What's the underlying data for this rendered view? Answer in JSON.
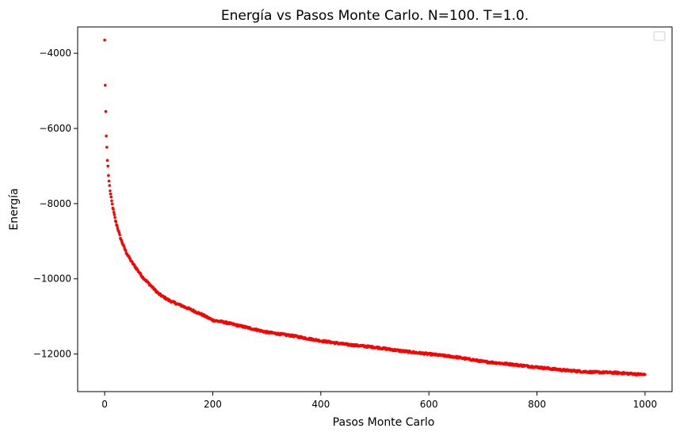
{
  "chart_data": {
    "type": "scatter",
    "title": "Energía vs Pasos Monte Carlo. N=100. T=1.0.",
    "xlabel": "Pasos Monte Carlo",
    "ylabel": "Energía",
    "xlim": [
      -50,
      1050
    ],
    "ylim": [
      -13000,
      -3300
    ],
    "xticks": [
      0,
      200,
      400,
      600,
      800,
      1000
    ],
    "yticks": [
      -12000,
      -10000,
      -8000,
      -6000,
      -4000
    ],
    "grid": false,
    "legend": "top-right, empty",
    "marker_color": "#ff0000",
    "x_range": [
      0,
      1000
    ],
    "x_step": 1,
    "anchor_points": [
      [
        0,
        -3650
      ],
      [
        1,
        -4850
      ],
      [
        2,
        -5550
      ],
      [
        3,
        -6200
      ],
      [
        4,
        -6500
      ],
      [
        5,
        -6850
      ],
      [
        6,
        -7000
      ],
      [
        7,
        -7250
      ],
      [
        8,
        -7400
      ],
      [
        10,
        -7650
      ],
      [
        12,
        -7850
      ],
      [
        15,
        -8100
      ],
      [
        20,
        -8450
      ],
      [
        25,
        -8700
      ],
      [
        30,
        -8950
      ],
      [
        40,
        -9300
      ],
      [
        50,
        -9550
      ],
      [
        60,
        -9750
      ],
      [
        70,
        -9950
      ],
      [
        80,
        -10100
      ],
      [
        90,
        -10250
      ],
      [
        100,
        -10400
      ],
      [
        120,
        -10580
      ],
      [
        140,
        -10700
      ],
      [
        160,
        -10820
      ],
      [
        180,
        -10950
      ],
      [
        200,
        -11100
      ],
      [
        220,
        -11150
      ],
      [
        250,
        -11250
      ],
      [
        280,
        -11350
      ],
      [
        300,
        -11420
      ],
      [
        350,
        -11520
      ],
      [
        400,
        -11650
      ],
      [
        450,
        -11750
      ],
      [
        500,
        -11820
      ],
      [
        550,
        -11920
      ],
      [
        600,
        -12000
      ],
      [
        650,
        -12080
      ],
      [
        700,
        -12200
      ],
      [
        750,
        -12270
      ],
      [
        800,
        -12350
      ],
      [
        850,
        -12430
      ],
      [
        900,
        -12480
      ],
      [
        950,
        -12500
      ],
      [
        1000,
        -12550
      ]
    ],
    "noise_amplitude": 25
  }
}
